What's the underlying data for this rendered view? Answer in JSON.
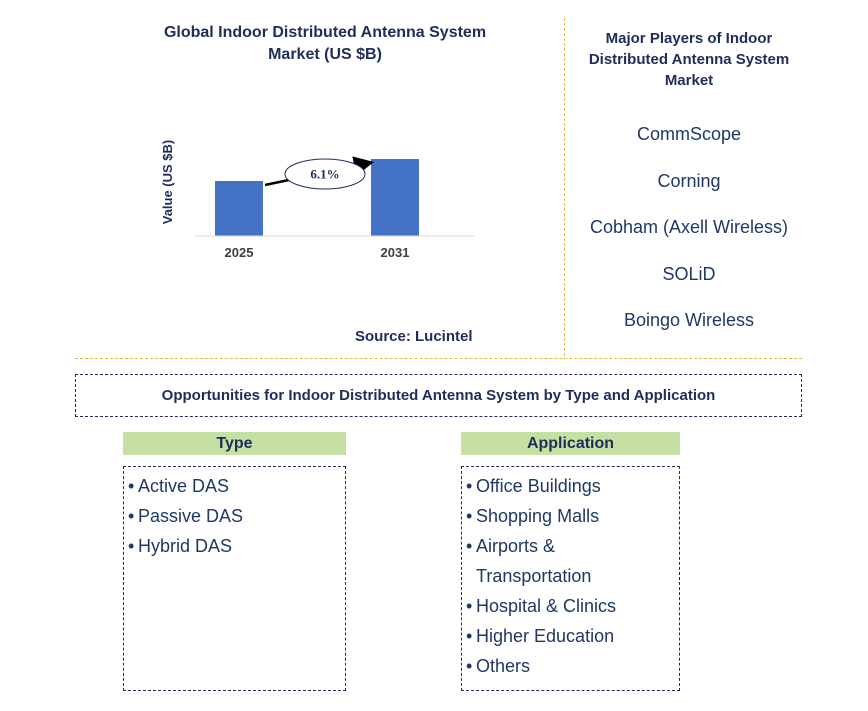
{
  "chart_data": {
    "type": "bar",
    "title": "Global Indoor Distributed Antenna System Market (US $B)",
    "ylabel": "Value (US $B)",
    "categories": [
      "2025",
      "2031"
    ],
    "values": [
      1.0,
      1.4
    ],
    "ylim": [
      0,
      1.6
    ],
    "bar_color": "#4472c4",
    "annotations": [
      {
        "label": "6.1%",
        "type": "cagr-arrow",
        "from": "2025",
        "to": "2031"
      }
    ],
    "source": "Source: Lucintel"
  },
  "players": {
    "title": "Major Players of Indoor Distributed Antenna System Market",
    "items": [
      "CommScope",
      "Corning",
      "Cobham (Axell Wireless)",
      "SOLiD",
      "Boingo Wireless"
    ]
  },
  "opportunities": {
    "title": "Opportunities for Indoor Distributed Antenna System by Type and Application",
    "type": {
      "header": "Type",
      "items": [
        "Active DAS",
        "Passive DAS",
        "Hybrid DAS"
      ]
    },
    "application": {
      "header": "Application",
      "items": [
        "Office Buildings",
        "Shopping Malls",
        "Airports & Transportation",
        "Hospital & Clinics",
        "Higher Education",
        "Others"
      ]
    }
  },
  "colors": {
    "title_text": "#1f2d5a",
    "list_text": "#1f3864",
    "header_fill": "#c6e0a4",
    "divider": "#e3b83c"
  }
}
